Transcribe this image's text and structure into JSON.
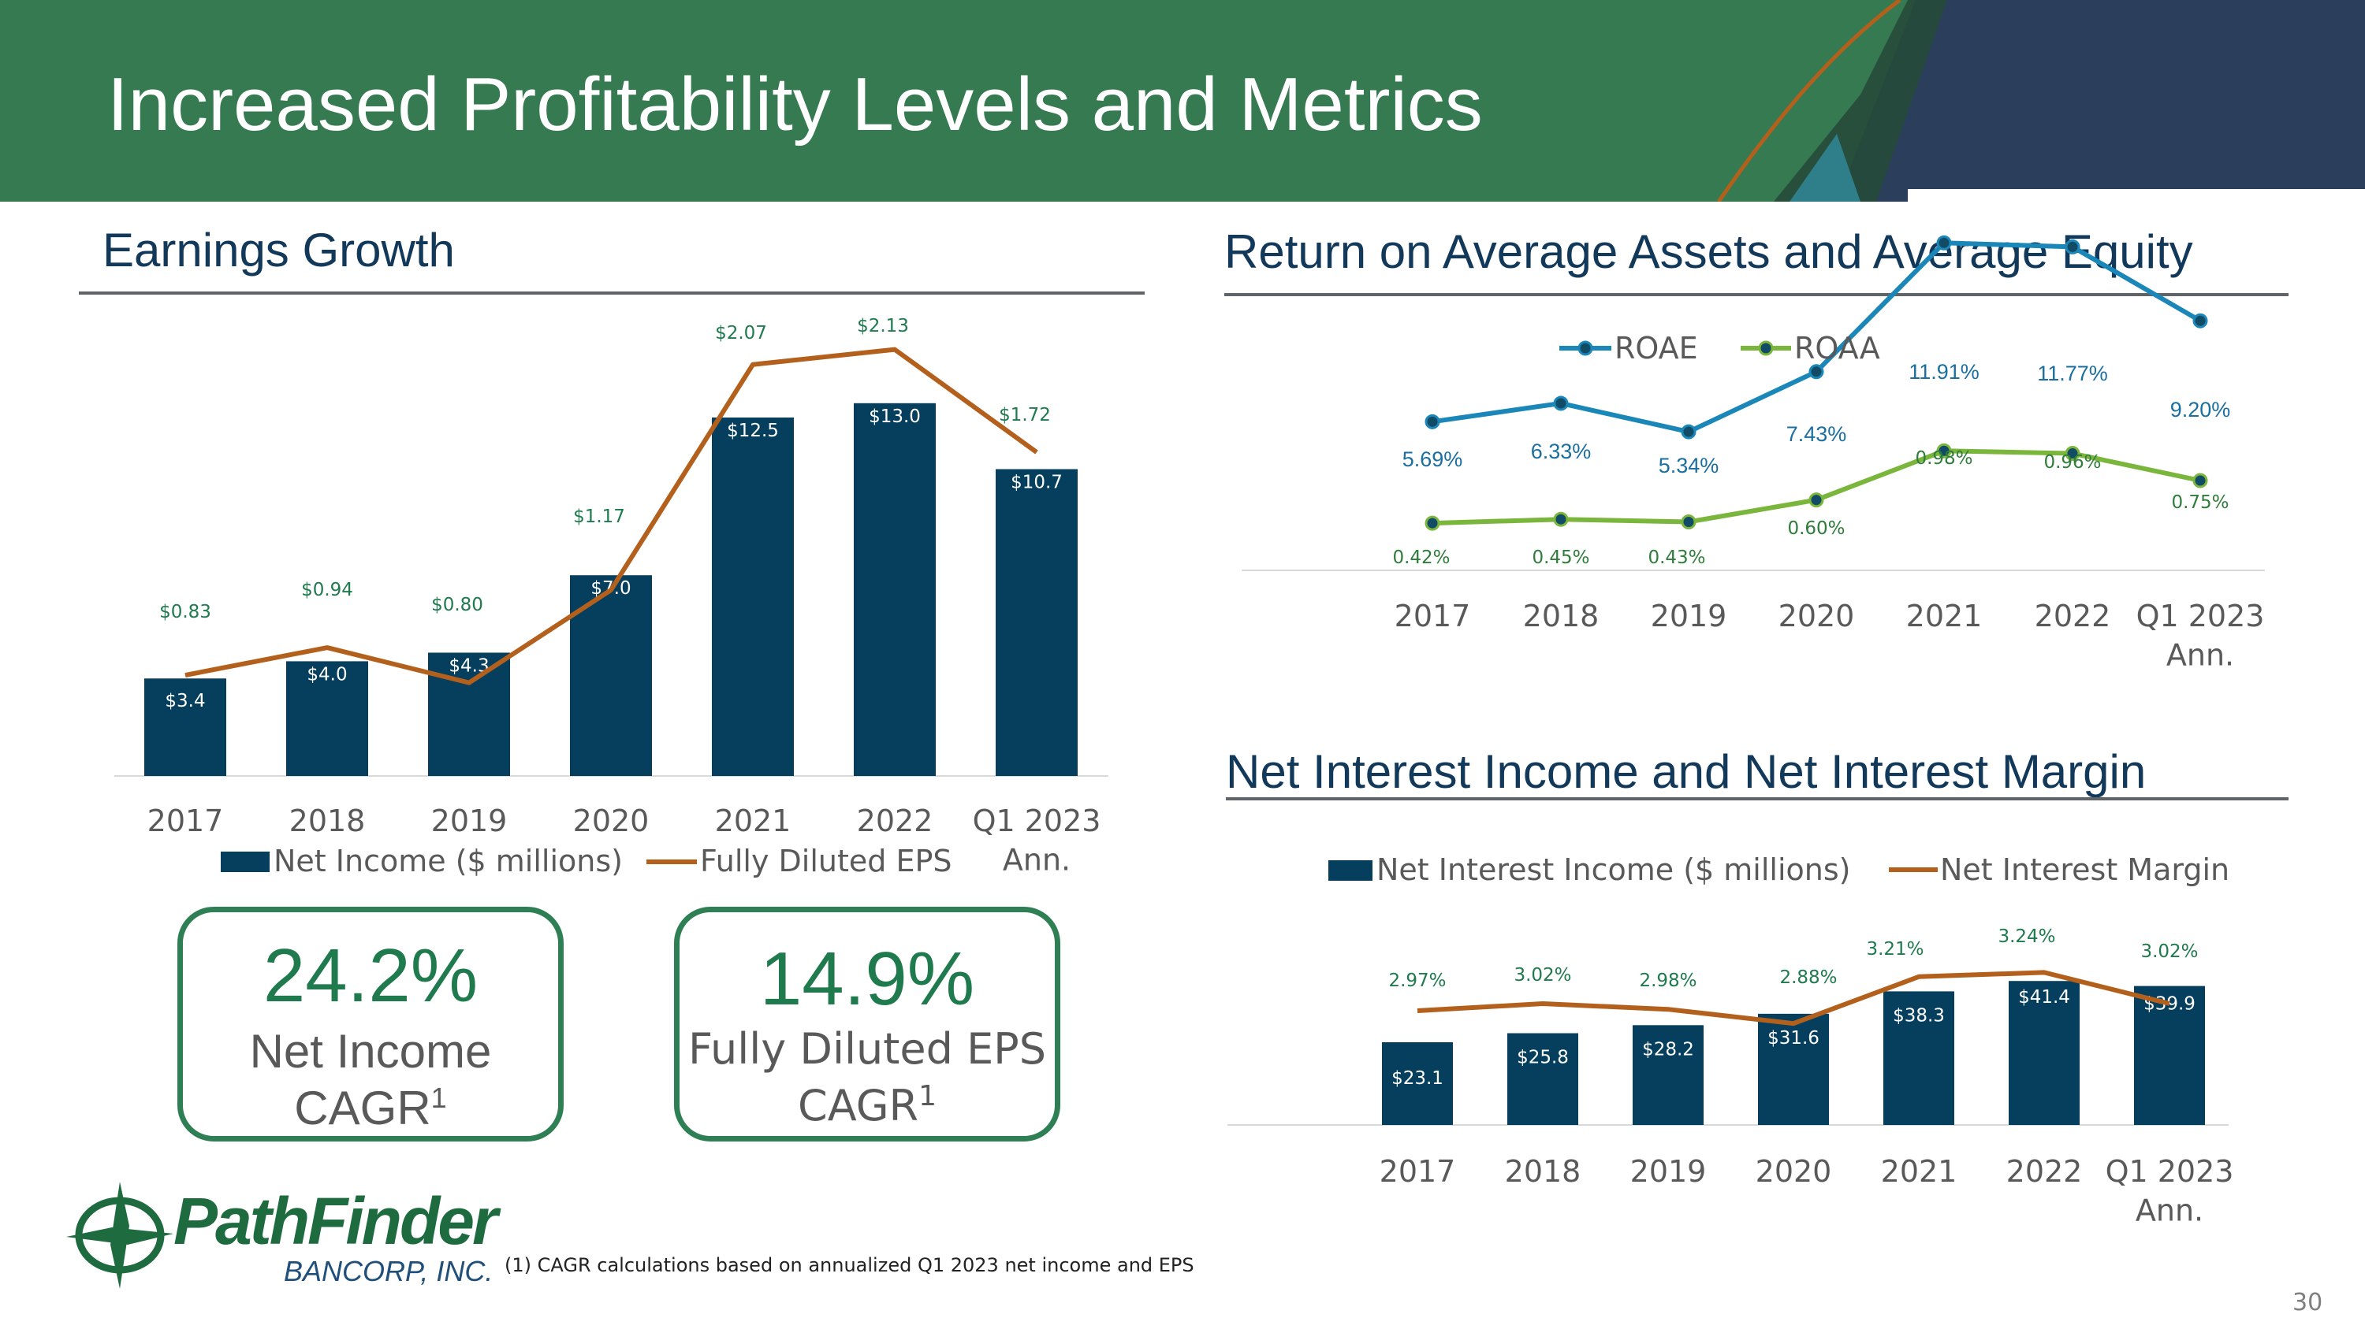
{
  "header": {
    "title": "Increased Profitability Levels and Metrics"
  },
  "colors": {
    "header_green": "#357a50",
    "navy": "#063f5e",
    "orange": "#b4601d",
    "roae_blue": "#1a87b8",
    "roaa_green": "#7ab63c",
    "kpi_green": "#1f7a4d"
  },
  "sections": {
    "earnings": "Earnings Growth",
    "returns": "Return on Average Assets and Average Equity",
    "nii": "Net Interest Income and Net Interest Margin"
  },
  "chart_data": [
    {
      "id": "earnings",
      "type": "bar",
      "title": "Earnings Growth",
      "categories": [
        "2017",
        "2018",
        "2019",
        "2020",
        "2021",
        "2022",
        "Q1 2023 Ann."
      ],
      "series": [
        {
          "name": "Net Income ($ millions)",
          "type": "bar",
          "values": [
            3.4,
            4.0,
            4.3,
            7.0,
            12.5,
            13.0,
            10.7
          ],
          "labels": [
            "$3.4",
            "$4.0",
            "$4.3",
            "$7.0",
            "$12.5",
            "$13.0",
            "$10.7"
          ]
        },
        {
          "name": "Fully Diluted EPS",
          "type": "line",
          "values": [
            0.83,
            0.94,
            0.8,
            1.17,
            2.07,
            2.13,
            1.72
          ],
          "labels": [
            "$0.83",
            "$0.94",
            "$0.80",
            "$1.17",
            "$2.07",
            "$2.13",
            "$1.72"
          ]
        }
      ],
      "legend": "bottom"
    },
    {
      "id": "returns",
      "type": "line",
      "title": "Return on Average Assets and Average Equity",
      "categories": [
        "2017",
        "2018",
        "2019",
        "2020",
        "2021",
        "2022",
        "Q1 2023 Ann."
      ],
      "series": [
        {
          "name": "ROAE",
          "values": [
            5.69,
            6.33,
            5.34,
            7.43,
            11.91,
            11.77,
            9.2
          ],
          "labels": [
            "5.69%",
            "6.33%",
            "5.34%",
            "7.43%",
            "11.91%",
            "11.77%",
            "9.20%"
          ]
        },
        {
          "name": "ROAA",
          "values": [
            0.42,
            0.45,
            0.43,
            0.6,
            0.98,
            0.96,
            0.75
          ],
          "labels": [
            "0.42%",
            "0.45%",
            "0.43%",
            "0.60%",
            "0.98%",
            "0.96%",
            "0.75%"
          ]
        }
      ],
      "legend": "top"
    },
    {
      "id": "nii",
      "type": "bar",
      "title": "Net Interest Income and Net Interest Margin",
      "categories": [
        "2017",
        "2018",
        "2019",
        "2020",
        "2021",
        "2022",
        "Q1 2023 Ann."
      ],
      "series": [
        {
          "name": "Net Interest Income ($ millions)",
          "type": "bar",
          "values": [
            23.1,
            25.8,
            28.2,
            31.6,
            38.3,
            41.4,
            39.9
          ],
          "labels": [
            "$23.1",
            "$25.8",
            "$28.2",
            "$31.6",
            "$38.3",
            "$41.4",
            "$39.9"
          ]
        },
        {
          "name": "Net Interest Margin",
          "type": "line",
          "values": [
            2.97,
            3.02,
            2.98,
            2.88,
            3.21,
            3.24,
            3.02
          ],
          "labels": [
            "2.97%",
            "3.02%",
            "2.98%",
            "2.88%",
            "3.21%",
            "3.24%",
            "3.02%"
          ]
        }
      ],
      "legend": "top"
    }
  ],
  "kpis": [
    {
      "value": "24.2%",
      "line1": "Net Income",
      "line2": "CAGR",
      "sup": "1"
    },
    {
      "value": "14.9%",
      "line1": "Fully Diluted EPS",
      "line2": "CAGR",
      "sup": "1"
    }
  ],
  "logo": {
    "name": "PathFinder",
    "sub": "BANCORP, INC."
  },
  "footnote": "(1) CAGR calculations based on annualized Q1 2023 net income and EPS",
  "page_number": "30"
}
